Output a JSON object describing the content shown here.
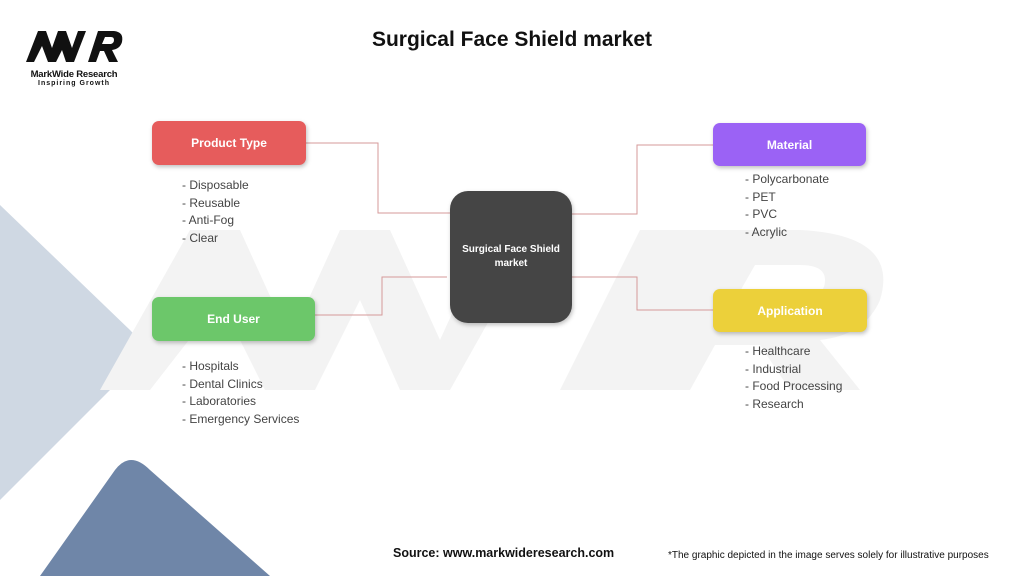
{
  "logo": {
    "brand": "MarkWide Research",
    "tagline": "Inspiring Growth",
    "mark": "MWR"
  },
  "title": "Surgical Face Shield market",
  "center": {
    "label": "Surgical Face Shield market"
  },
  "nodes": [
    {
      "label": "Product Type",
      "color": "#e65c5c",
      "items": [
        "- Disposable",
        "- Reusable",
        "- Anti-Fog",
        "- Clear"
      ]
    },
    {
      "label": "Material",
      "color": "#9b62f5",
      "items": [
        "- Polycarbonate",
        "- PET",
        "- PVC",
        "- Acrylic"
      ]
    },
    {
      "label": "End User",
      "color": "#6cc76a",
      "items": [
        "- Hospitals",
        "- Dental Clinics",
        "- Laboratories",
        "- Emergency Services"
      ]
    },
    {
      "label": "Application",
      "color": "#ecd03a",
      "items": [
        "- Healthcare",
        "- Industrial",
        "- Food Processing",
        "- Research"
      ]
    }
  ],
  "connector_color": "#d59a9a",
  "footer": {
    "source": "Source: www.markwideresearch.com",
    "note": "*The graphic depicted in the image serves solely for illustrative purposes"
  }
}
